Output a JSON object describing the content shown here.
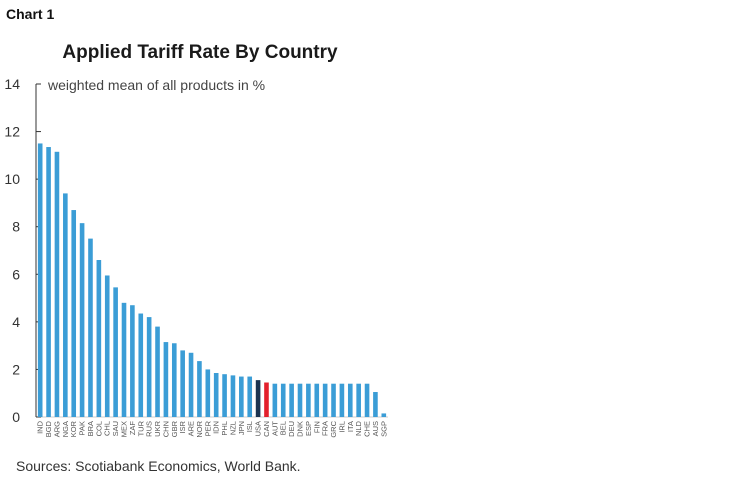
{
  "header": {
    "chart_label": "Chart 1"
  },
  "footer": {
    "source": "Sources: Scotiabank Economics, World Bank."
  },
  "colors": {
    "default_bar": "#3b9dd6",
    "highlight_usa": "#1b3350",
    "highlight_can": "#e3202c",
    "axis": "#333333"
  },
  "chart_data": {
    "type": "bar",
    "title": "Applied Tariff Rate By Country",
    "ylabel": "weighted mean of all products in %",
    "xlabel": "",
    "ylim": [
      0,
      14
    ],
    "yticks": [
      0,
      2,
      4,
      6,
      8,
      10,
      12,
      14
    ],
    "grid": false,
    "categories": [
      "IND",
      "BGD",
      "ARG",
      "NGA",
      "KOR",
      "PAK",
      "BRA",
      "COL",
      "CHL",
      "SAU",
      "MEX",
      "ZAF",
      "TUR",
      "RUS",
      "UKR",
      "CHN",
      "GBR",
      "ISR",
      "ARE",
      "NOR",
      "PER",
      "IDN",
      "PHL",
      "NZL",
      "JPN",
      "ISL",
      "USA",
      "CAN",
      "AUT",
      "BEL",
      "DEU",
      "DNK",
      "ESP",
      "FIN",
      "FRA",
      "GRC",
      "IRL",
      "ITA",
      "NLD",
      "CHE",
      "AUS",
      "SGP"
    ],
    "values": [
      11.5,
      11.35,
      11.15,
      9.4,
      8.7,
      8.15,
      7.5,
      6.6,
      5.95,
      5.45,
      4.8,
      4.7,
      4.35,
      4.2,
      3.8,
      3.15,
      3.1,
      2.8,
      2.7,
      2.35,
      2.0,
      1.85,
      1.8,
      1.75,
      1.7,
      1.7,
      1.55,
      1.45,
      1.4,
      1.4,
      1.4,
      1.4,
      1.4,
      1.4,
      1.4,
      1.4,
      1.4,
      1.4,
      1.4,
      1.4,
      1.05,
      0.15
    ],
    "highlight": {
      "USA": "highlight_usa",
      "CAN": "highlight_can"
    }
  }
}
